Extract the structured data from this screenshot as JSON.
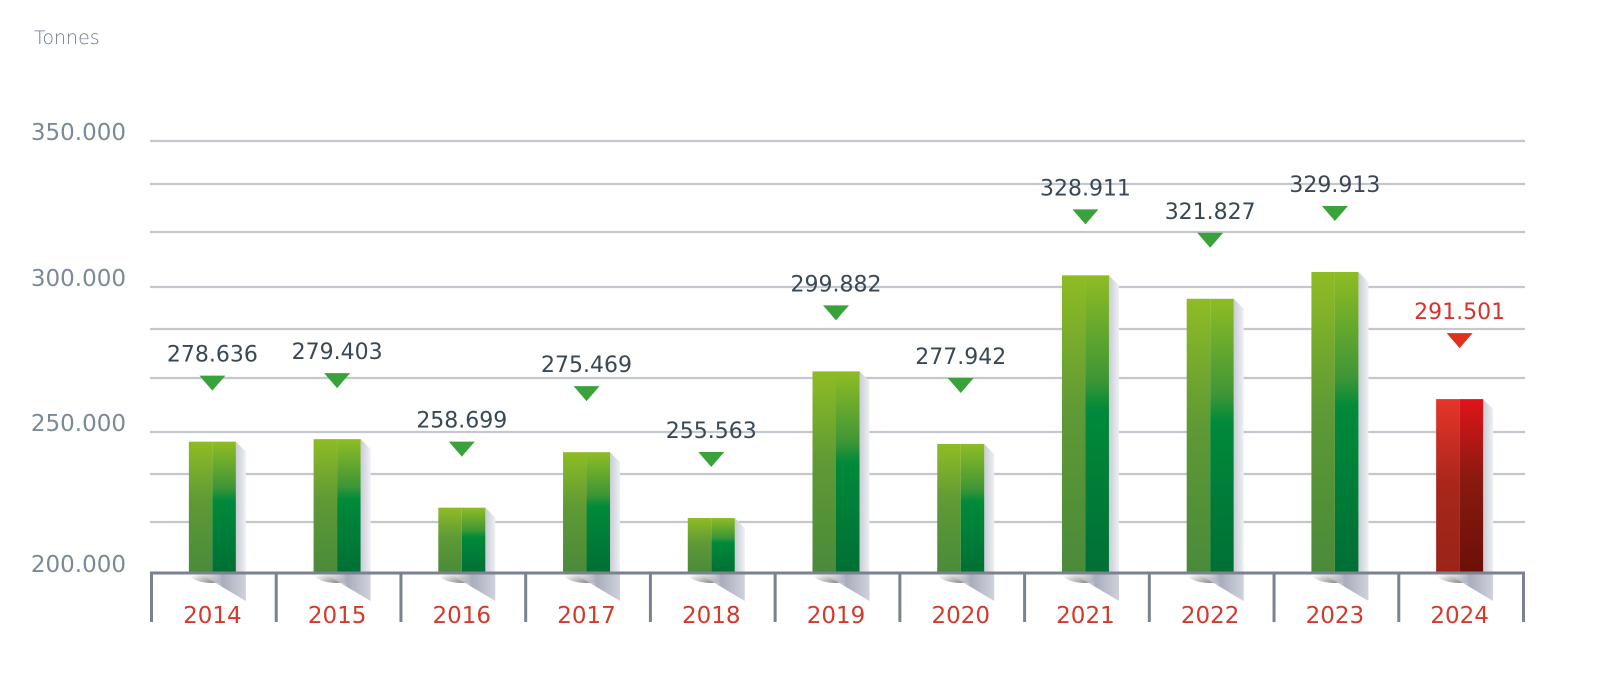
{
  "chart_data": {
    "type": "bar",
    "title": "",
    "ylabel": "Tonnes",
    "xlabel": "",
    "ylim": [
      200000,
      350000
    ],
    "yticks": [
      {
        "value": 200000,
        "label": "200.000"
      },
      {
        "value": 250000,
        "label": "250.000"
      },
      {
        "value": 300000,
        "label": "300.000"
      },
      {
        "value": 350000,
        "label": "350.000"
      }
    ],
    "grid": true,
    "categories": [
      "2014",
      "2015",
      "2016",
      "2017",
      "2018",
      "2019",
      "2020",
      "2021",
      "2022",
      "2023",
      "2024"
    ],
    "series": [
      {
        "name": "Tonnes",
        "values": [
          278636,
          279403,
          258699,
          275469,
          255563,
          299882,
          277942,
          328911,
          321827,
          329913,
          291501
        ],
        "value_labels": [
          "278.636",
          "279.403",
          "258.699",
          "275.469",
          "255.563",
          "299.882",
          "277.942",
          "328.911",
          "321.827",
          "329.913",
          "291.501"
        ]
      }
    ],
    "highlight_category": "2024",
    "colors": {
      "bar_light": "#8fbc24",
      "bar_mid": "#4a8a3a",
      "bar_dark": "#006f35",
      "highlight_light": "#e8342a",
      "highlight_dark": "#6b1008",
      "marker": "#3aa23a",
      "highlight_marker": "#e0301e",
      "grid": "#c5c7cf",
      "axis": "#7a8290",
      "xtick_text": "#d5392a",
      "ytick_text": "#7b8a98",
      "value_text": "#3a4856"
    }
  }
}
